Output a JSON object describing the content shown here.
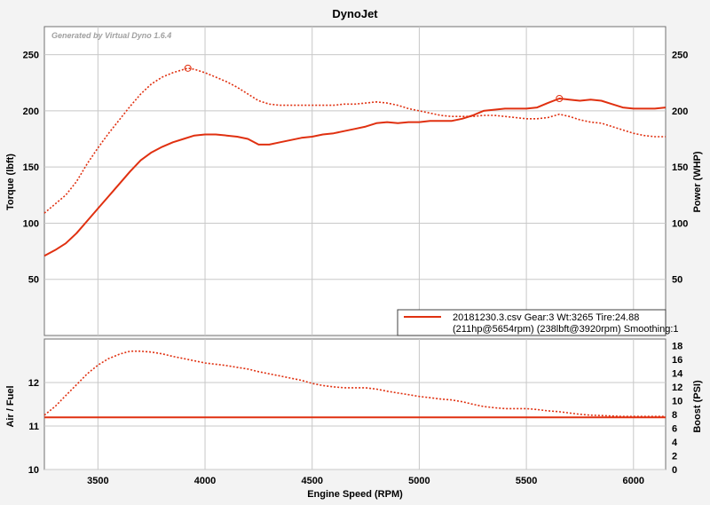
{
  "chart_data": {
    "title": "DynoJet",
    "watermark": "Generated by Virtual Dyno 1.6.4",
    "xlabel": "Engine Speed (RPM)",
    "xlim": [
      3250,
      6150
    ],
    "xticks": [
      "3500",
      "4000",
      "4500",
      "5000",
      "5500",
      "6000"
    ],
    "xtick_values": [
      3500,
      4000,
      4500,
      5000,
      5500,
      6000
    ],
    "color": "#e03010",
    "top_panel": {
      "type": "line",
      "y_left_label": "Torque (lbft)",
      "y_right_label": "Power (WHP)",
      "ylim": [
        0,
        275
      ],
      "yticks_left": [
        "50",
        "100",
        "150",
        "200",
        "250"
      ],
      "yticks_right": [
        "50",
        "100",
        "150",
        "200",
        "250"
      ],
      "ytick_values": [
        50,
        100,
        150,
        200,
        250
      ],
      "grid": true,
      "series": [
        {
          "style": "solid",
          "x": [
            3250,
            3300,
            3350,
            3400,
            3450,
            3500,
            3550,
            3600,
            3650,
            3700,
            3750,
            3800,
            3850,
            3900,
            3950,
            4000,
            4050,
            4100,
            4150,
            4200,
            4250,
            4300,
            4350,
            4400,
            4450,
            4500,
            4550,
            4600,
            4650,
            4700,
            4750,
            4800,
            4850,
            4900,
            4950,
            5000,
            5050,
            5100,
            5150,
            5200,
            5250,
            5300,
            5350,
            5400,
            5450,
            5500,
            5550,
            5600,
            5654,
            5700,
            5750,
            5800,
            5850,
            5900,
            5950,
            6000,
            6050,
            6100,
            6150
          ],
          "y": [
            71,
            76,
            82,
            91,
            102,
            113,
            124,
            135,
            146,
            156,
            163,
            168,
            172,
            175,
            178,
            179,
            179,
            178,
            177,
            175,
            170,
            170,
            172,
            174,
            176,
            177,
            179,
            180,
            182,
            184,
            186,
            189,
            190,
            189,
            190,
            190,
            191,
            191,
            191,
            193,
            196,
            200,
            201,
            202,
            202,
            202,
            203,
            207,
            211,
            210,
            209,
            210,
            209,
            206,
            203,
            202,
            202,
            202,
            203
          ]
        },
        {
          "style": "dotted",
          "x": [
            3250,
            3300,
            3350,
            3400,
            3450,
            3500,
            3550,
            3600,
            3650,
            3700,
            3750,
            3800,
            3850,
            3920,
            3950,
            4000,
            4050,
            4100,
            4150,
            4200,
            4250,
            4300,
            4350,
            4400,
            4450,
            4500,
            4550,
            4600,
            4650,
            4700,
            4750,
            4800,
            4850,
            4900,
            4950,
            5000,
            5050,
            5100,
            5150,
            5200,
            5250,
            5300,
            5350,
            5400,
            5450,
            5500,
            5550,
            5600,
            5654,
            5700,
            5750,
            5800,
            5850,
            5900,
            5950,
            6000,
            6050,
            6100,
            6150
          ],
          "y": [
            109,
            117,
            125,
            137,
            153,
            167,
            180,
            192,
            204,
            215,
            224,
            230,
            234,
            238,
            237,
            234,
            230,
            226,
            221,
            215,
            209,
            206,
            205,
            205,
            205,
            205,
            205,
            205,
            206,
            206,
            207,
            208,
            207,
            205,
            202,
            200,
            198,
            196,
            195,
            195,
            195,
            196,
            196,
            195,
            194,
            193,
            193,
            194,
            197,
            195,
            192,
            190,
            189,
            186,
            183,
            180,
            178,
            177,
            177
          ]
        }
      ],
      "markers": [
        {
          "x": 3920,
          "y": 238
        },
        {
          "x": 5654,
          "y": 211
        }
      ],
      "legend": {
        "position": "bottom-right",
        "line1": "20181230.3.csv Gear:3 Wt:3265 Tire:24.88",
        "line2": "(211hp@5654rpm) (238lbft@3920rpm)  Smoothing:1"
      }
    },
    "bottom_panel": {
      "type": "line",
      "y_left_label": "Air / Fuel",
      "y_right_label": "Boost (PSI)",
      "ylim_left": [
        10,
        13
      ],
      "ylim_right": [
        0,
        19
      ],
      "yticks_left": [
        "10",
        "11",
        "12"
      ],
      "ytick_values_left": [
        10,
        11,
        12
      ],
      "yticks_right": [
        "0",
        "2",
        "4",
        "6",
        "8",
        "10",
        "12",
        "14",
        "16",
        "18"
      ],
      "ytick_values_right": [
        0,
        2,
        4,
        6,
        8,
        10,
        12,
        14,
        16,
        18
      ],
      "grid": true,
      "series": [
        {
          "style": "solid",
          "axis": "left",
          "x": [
            3250,
            6150
          ],
          "y": [
            11.2,
            11.2
          ]
        },
        {
          "style": "dotted",
          "axis": "left",
          "x": [
            3250,
            3300,
            3350,
            3400,
            3450,
            3500,
            3550,
            3600,
            3650,
            3700,
            3750,
            3800,
            3850,
            3900,
            3950,
            4000,
            4050,
            4100,
            4150,
            4200,
            4250,
            4300,
            4350,
            4400,
            4450,
            4500,
            4550,
            4600,
            4650,
            4700,
            4750,
            4800,
            4850,
            4900,
            4950,
            5000,
            5050,
            5100,
            5150,
            5200,
            5250,
            5300,
            5350,
            5400,
            5450,
            5500,
            5550,
            5600,
            5650,
            5700,
            5750,
            5800,
            5850,
            5900,
            5950,
            6000,
            6050,
            6100,
            6150
          ],
          "y": [
            11.25,
            11.45,
            11.7,
            11.95,
            12.2,
            12.4,
            12.55,
            12.65,
            12.72,
            12.72,
            12.7,
            12.66,
            12.6,
            12.55,
            12.5,
            12.45,
            12.42,
            12.39,
            12.35,
            12.31,
            12.25,
            12.2,
            12.15,
            12.1,
            12.05,
            11.98,
            11.93,
            11.9,
            11.88,
            11.88,
            11.88,
            11.85,
            11.8,
            11.76,
            11.72,
            11.68,
            11.65,
            11.62,
            11.6,
            11.56,
            11.5,
            11.45,
            11.42,
            11.4,
            11.4,
            11.4,
            11.38,
            11.35,
            11.33,
            11.3,
            11.27,
            11.25,
            11.24,
            11.23,
            11.22,
            11.22,
            11.22,
            11.22,
            11.22
          ]
        }
      ]
    }
  }
}
